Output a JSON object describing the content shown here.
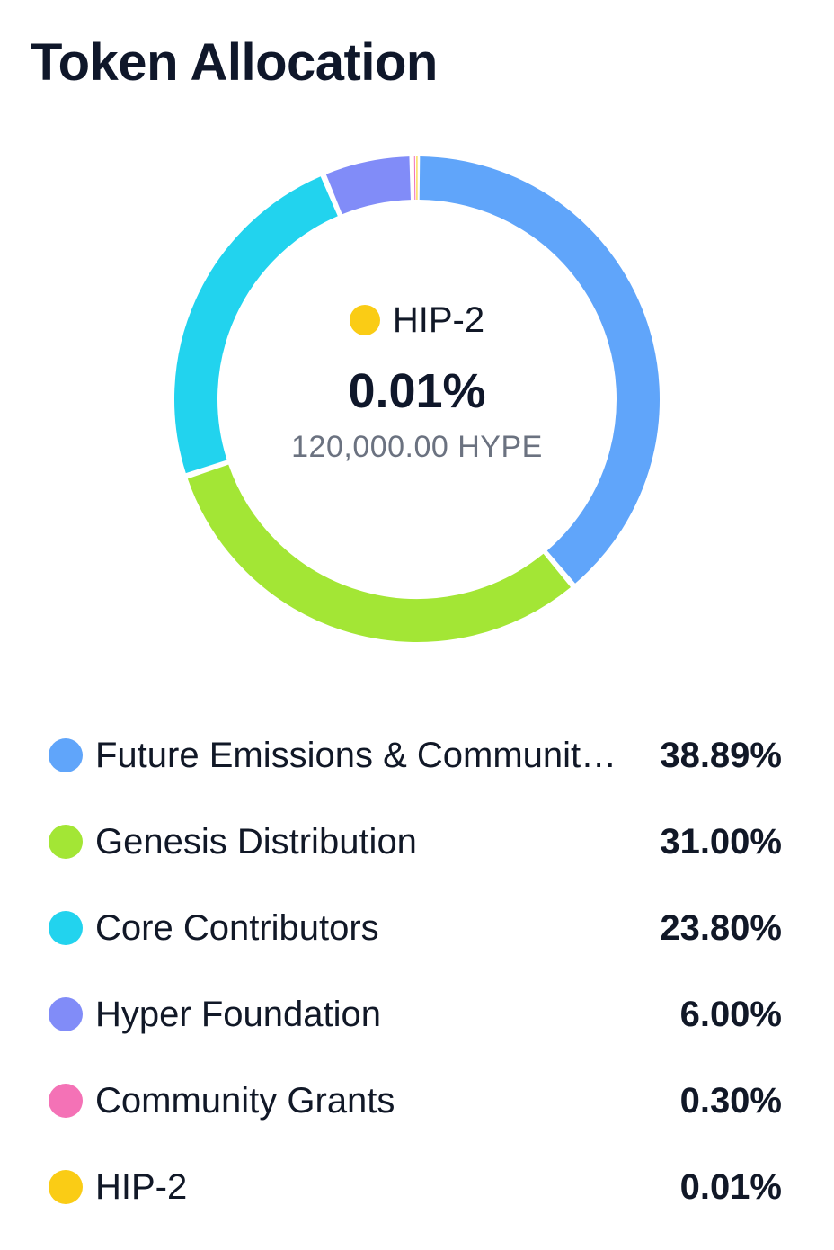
{
  "header": {
    "title": "Token Allocation"
  },
  "selected": {
    "label": "HIP-2",
    "percent_label": "0.01%",
    "amount_label": "120,000.00 HYPE",
    "color": "#facc15"
  },
  "chart_data": {
    "type": "pie",
    "variant": "donut",
    "title": "Token Allocation",
    "unit": "%",
    "legend_position": "bottom",
    "categories": [
      "Future Emissions & Community Rewards",
      "Genesis Distribution",
      "Core Contributors",
      "Hyper Foundation",
      "Community Grants",
      "HIP-2"
    ],
    "values": [
      38.89,
      31.0,
      23.8,
      6.0,
      0.3,
      0.01
    ],
    "colors": [
      "#60a5fa",
      "#a3e635",
      "#22d3ee",
      "#818cf8",
      "#f472b6",
      "#facc15"
    ]
  },
  "legend": {
    "items": [
      {
        "label": "Future Emissions & Community Rewards",
        "value": "38.89%",
        "color": "#60a5fa"
      },
      {
        "label": "Genesis Distribution",
        "value": "31.00%",
        "color": "#a3e635"
      },
      {
        "label": "Core Contributors",
        "value": "23.80%",
        "color": "#22d3ee"
      },
      {
        "label": "Hyper Foundation",
        "value": "6.00%",
        "color": "#818cf8"
      },
      {
        "label": "Community Grants",
        "value": "0.30%",
        "color": "#f472b6"
      },
      {
        "label": "HIP-2",
        "value": "0.01%",
        "color": "#facc15"
      }
    ]
  }
}
